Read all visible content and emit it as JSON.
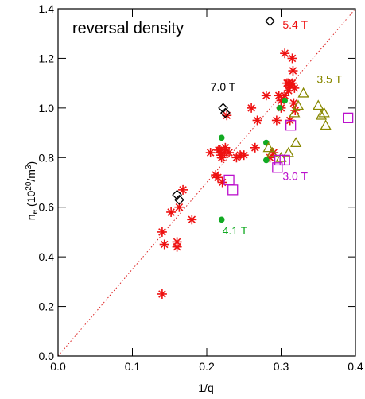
{
  "chart_data": {
    "type": "scatter",
    "title": "reversal density",
    "xlabel": "1/q",
    "ylabel_main": "n",
    "ylabel_sub": "e",
    "ylabel_unit_open": " (10",
    "ylabel_unit_exp": "20",
    "ylabel_unit_close": "/m",
    "ylabel_unit_exp2": "3",
    "ylabel_unit_end": ")",
    "xlim": [
      0.0,
      0.4
    ],
    "ylim": [
      0.0,
      1.4
    ],
    "xticks": [
      {
        "value": 0.0,
        "label": "0.0"
      },
      {
        "value": 0.1,
        "label": "0.1"
      },
      {
        "value": 0.2,
        "label": "0.2"
      },
      {
        "value": 0.3,
        "label": "0.3"
      },
      {
        "value": 0.4,
        "label": "0.4"
      }
    ],
    "yticks": [
      {
        "value": 0.0,
        "label": "0.0"
      },
      {
        "value": 0.2,
        "label": "0.2"
      },
      {
        "value": 0.4,
        "label": "0.4"
      },
      {
        "value": 0.6,
        "label": "0.6"
      },
      {
        "value": 0.8,
        "label": "0.8"
      },
      {
        "value": 1.0,
        "label": "1.0"
      },
      {
        "value": 1.2,
        "label": "1.2"
      },
      {
        "value": 1.4,
        "label": "1.4"
      }
    ],
    "trend_line": {
      "x": [
        0.0,
        0.4
      ],
      "y": [
        0.0,
        1.4
      ],
      "color": "#dd2222",
      "style": "dotted"
    },
    "series": [
      {
        "marker": "asterisk",
        "color": "#ee1111",
        "points": [
          [
            0.14,
            0.25
          ],
          [
            0.14,
            0.5
          ],
          [
            0.143,
            0.45
          ],
          [
            0.152,
            0.58
          ],
          [
            0.16,
            0.46
          ],
          [
            0.16,
            0.44
          ],
          [
            0.163,
            0.6
          ],
          [
            0.168,
            0.67
          ],
          [
            0.18,
            0.55
          ],
          [
            0.205,
            0.82
          ],
          [
            0.212,
            0.73
          ],
          [
            0.215,
            0.72
          ],
          [
            0.216,
            0.83
          ],
          [
            0.218,
            0.83
          ],
          [
            0.219,
            0.81
          ],
          [
            0.22,
            0.8
          ],
          [
            0.221,
            0.7
          ],
          [
            0.224,
            0.82
          ],
          [
            0.225,
            0.84
          ],
          [
            0.227,
            0.97
          ],
          [
            0.23,
            0.82
          ],
          [
            0.24,
            0.8
          ],
          [
            0.245,
            0.81
          ],
          [
            0.25,
            0.81
          ],
          [
            0.26,
            1.0
          ],
          [
            0.265,
            0.84
          ],
          [
            0.268,
            0.95
          ],
          [
            0.28,
            1.05
          ],
          [
            0.285,
            0.8
          ],
          [
            0.29,
            0.82
          ],
          [
            0.294,
            0.95
          ],
          [
            0.297,
            1.05
          ],
          [
            0.3,
            1.0
          ],
          [
            0.305,
            1.05
          ],
          [
            0.308,
            1.1
          ],
          [
            0.31,
            1.1
          ],
          [
            0.31,
            1.07
          ],
          [
            0.312,
            1.09
          ],
          [
            0.315,
            1.1
          ],
          [
            0.315,
            1.2
          ],
          [
            0.316,
            1.15
          ],
          [
            0.317,
            1.02
          ],
          [
            0.318,
            1.08
          ],
          [
            0.319,
            0.99
          ],
          [
            0.312,
            0.95
          ],
          [
            0.305,
            1.22
          ],
          [
            0.3,
            1.03
          ]
        ]
      },
      {
        "marker": "dot",
        "color": "#11aa22",
        "points": [
          [
            0.22,
            0.55
          ],
          [
            0.22,
            0.88
          ],
          [
            0.28,
            0.86
          ],
          [
            0.28,
            0.79
          ],
          [
            0.298,
            1.0
          ],
          [
            0.305,
            1.03
          ]
        ]
      },
      {
        "marker": "triangle",
        "color": "#888800",
        "points": [
          [
            0.283,
            0.84
          ],
          [
            0.288,
            0.82
          ],
          [
            0.3,
            0.8
          ],
          [
            0.31,
            0.82
          ],
          [
            0.32,
            0.86
          ],
          [
            0.323,
            1.01
          ],
          [
            0.33,
            1.06
          ],
          [
            0.35,
            1.01
          ],
          [
            0.354,
            0.97
          ],
          [
            0.36,
            0.93
          ],
          [
            0.358,
            0.98
          ],
          [
            0.318,
            0.98
          ]
        ]
      },
      {
        "marker": "square",
        "color": "#bb11cc",
        "points": [
          [
            0.23,
            0.71
          ],
          [
            0.235,
            0.67
          ],
          [
            0.295,
            0.76
          ],
          [
            0.298,
            0.79
          ],
          [
            0.305,
            0.79
          ],
          [
            0.313,
            0.93
          ],
          [
            0.39,
            0.96
          ]
        ]
      },
      {
        "marker": "diamond",
        "color": "#000000",
        "points": [
          [
            0.16,
            0.65
          ],
          [
            0.163,
            0.63
          ],
          [
            0.222,
            1.0
          ],
          [
            0.225,
            0.98
          ],
          [
            0.285,
            1.35
          ]
        ]
      }
    ],
    "annotations": [
      {
        "text": "5.4 T",
        "x": 0.302,
        "y": 1.32,
        "color": "#ee1111"
      },
      {
        "text": "7.0 T",
        "x": 0.205,
        "y": 1.07,
        "color": "#000000"
      },
      {
        "text": "3.5 T",
        "x": 0.348,
        "y": 1.1,
        "color": "#888800"
      },
      {
        "text": "3.0 T",
        "x": 0.302,
        "y": 0.71,
        "color": "#bb11cc"
      },
      {
        "text": "4.1 T",
        "x": 0.221,
        "y": 0.49,
        "color": "#11aa22"
      }
    ]
  }
}
